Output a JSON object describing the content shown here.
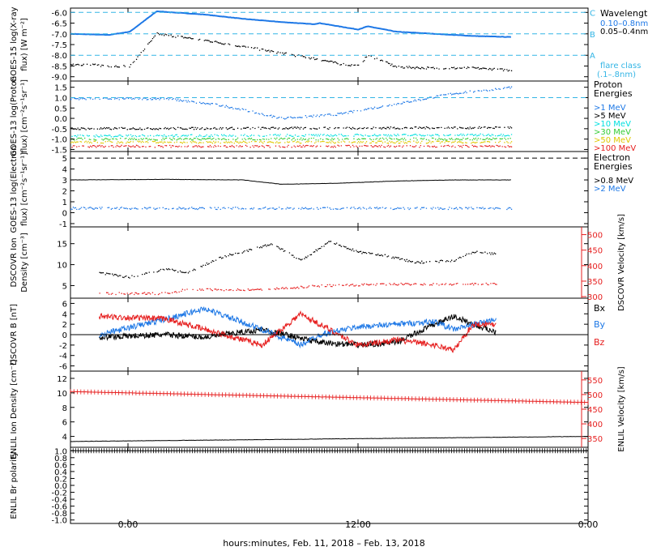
{
  "figure": {
    "x_axis_caption": "hours:minutes, Feb. 11, 2018 – Feb. 13, 2018",
    "x_ticks": [
      "0:00",
      "12:00",
      "0:00"
    ]
  },
  "colors": {
    "black": "#000000",
    "blue": "#1e78e6",
    "cyan": "#00e0e0",
    "green": "#33cc33",
    "yellow": "#e0c800",
    "orange": "#f08c00",
    "red": "#e61e1e",
    "dash": "#33b5e5"
  },
  "chart_data": [
    {
      "type": "line",
      "ylabel": "GOES-15 log(X-ray flux) [W m⁻²]",
      "yticks": [
        "-6.0",
        "-6.5",
        "-7.0",
        "-7.5",
        "-8.0",
        "-8.5",
        "-9.0"
      ],
      "ylim": [
        -9.2,
        -5.8
      ],
      "legend_title": "Wavelength",
      "flare_class_lines": [
        {
          "label": "C",
          "value": -6.0
        },
        {
          "label": "B",
          "value": -7.0
        },
        {
          "label": "A",
          "value": -8.0
        }
      ],
      "flare_class_note": [
        "flare class",
        "(.1–.8nm)"
      ],
      "series": [
        {
          "name": "0.10–0.8nm",
          "color": "blue",
          "x": [
            -3,
            -1,
            0.1,
            1.5,
            4,
            6,
            8,
            9.7,
            10,
            11,
            12,
            12.5,
            14,
            16,
            18,
            20
          ],
          "y": [
            -7.0,
            -7.05,
            -6.9,
            -5.95,
            -6.1,
            -6.3,
            -6.45,
            -6.55,
            -6.5,
            -6.65,
            -6.8,
            -6.65,
            -6.9,
            -7.0,
            -7.1,
            -7.15
          ]
        },
        {
          "name": "0.05–0.4nm",
          "color": "black",
          "x": [
            -3,
            -1,
            0.1,
            1.5,
            4,
            6,
            8,
            10,
            11,
            12,
            12.5,
            14,
            16,
            18,
            20
          ],
          "y": [
            -8.4,
            -8.5,
            -8.5,
            -7.0,
            -7.3,
            -7.6,
            -7.9,
            -8.2,
            -8.4,
            -8.5,
            -8.0,
            -8.55,
            -8.6,
            -8.6,
            -8.7
          ]
        }
      ]
    },
    {
      "type": "scatter",
      "ylabel": "GOES-13 log(Proton flux) [cm⁻²s⁻¹sr⁻¹]",
      "yticks": [
        "1.5",
        "1.0",
        "0.5",
        "0.0",
        "-0.5",
        "-1.0",
        "-1.5"
      ],
      "ylim": [
        -1.6,
        1.8
      ],
      "legend_title": [
        "Proton",
        "Energies"
      ],
      "threshold": 1.0,
      "series": [
        {
          "name": ">1 MeV",
          "color": "blue",
          "x": [
            -3,
            2,
            5,
            8,
            11,
            14,
            17,
            20
          ],
          "y": [
            0.95,
            0.95,
            0.6,
            0.0,
            0.2,
            0.7,
            1.2,
            1.5
          ]
        },
        {
          "name": ">5 MeV",
          "color": "black",
          "x": [
            -3,
            20
          ],
          "y": [
            -0.5,
            -0.45
          ]
        },
        {
          "name": ">10 MeV",
          "color": "cyan",
          "x": [
            -3,
            20
          ],
          "y": [
            -0.85,
            -0.8
          ]
        },
        {
          "name": ">30 MeV",
          "color": "green",
          "x": [
            -3,
            20
          ],
          "y": [
            -1.0,
            -1.0
          ]
        },
        {
          "name": ">50 MeV",
          "color": "yellow",
          "x": [
            -3,
            20
          ],
          "y": [
            -1.15,
            -1.15
          ]
        },
        {
          "name": ">100 MeV",
          "color": "red",
          "x": [
            -3,
            20
          ],
          "y": [
            -1.35,
            -1.35
          ]
        }
      ]
    },
    {
      "type": "line",
      "ylabel": "GOES-13 log(Electron flux) [cm⁻²s⁻¹sr⁻¹]",
      "yticks": [
        "5",
        "4",
        "3",
        "2",
        "1",
        "0",
        "-1"
      ],
      "ylim": [
        -1.3,
        5.6
      ],
      "legend_title": [
        "Electron",
        "Energies"
      ],
      "series": [
        {
          "name": ">0.8 MeV",
          "color": "black",
          "x": [
            -3,
            2,
            6,
            8,
            11,
            14,
            17,
            20
          ],
          "y": [
            3.0,
            3.05,
            3.0,
            2.6,
            2.7,
            2.9,
            3.0,
            3.0
          ]
        },
        {
          "name": ">2 MeV",
          "color": "blue",
          "x": [
            -3,
            20
          ],
          "y": [
            0.4,
            0.4
          ]
        }
      ]
    },
    {
      "type": "scatter",
      "ylabel": "DSCOVR Ion Density [cm⁻³]",
      "ylabel_right": "DSCOVR Velocity [km/s]",
      "yticks": [
        "15",
        "10",
        "5"
      ],
      "yticks_right": [
        "500",
        "450",
        "400",
        "350",
        "300"
      ],
      "ylim": [
        2,
        19
      ],
      "ylim_right": [
        295,
        525
      ],
      "series": [
        {
          "name": "Ion Density",
          "color": "black",
          "x": [
            -1.5,
            0,
            2,
            3,
            5,
            6,
            7.5,
            9,
            10.5,
            12,
            13,
            15,
            17,
            18,
            19.2
          ],
          "y": [
            8,
            7,
            9,
            8,
            12,
            13,
            15,
            11,
            15.5,
            13,
            12.5,
            10.5,
            11,
            13,
            12.5
          ]
        },
        {
          "name": "Velocity",
          "color": "red",
          "axis": "right",
          "x": [
            -1.5,
            2,
            3,
            7,
            10,
            14,
            19.2
          ],
          "y": [
            310,
            310,
            322,
            322,
            335,
            340,
            340
          ]
        }
      ]
    },
    {
      "type": "line",
      "ylabel": "DSCOVR B [nT]",
      "yticks": [
        "6",
        "4",
        "2",
        "0",
        "-2",
        "-4",
        "-6"
      ],
      "ylim": [
        -7,
        7
      ],
      "series": [
        {
          "name": "Bx",
          "color": "black",
          "x": [
            -1.5,
            2,
            4,
            7,
            10,
            12,
            14,
            16,
            17,
            18,
            19.2
          ],
          "y": [
            -0.5,
            0,
            -0.5,
            1,
            -1.5,
            -2,
            -1.5,
            2,
            3.5,
            2,
            0.5
          ]
        },
        {
          "name": "By",
          "color": "blue",
          "x": [
            -1.5,
            2,
            4,
            7,
            9,
            10,
            12,
            14,
            16,
            17,
            19.2
          ],
          "y": [
            0,
            3,
            5,
            1,
            -2,
            0,
            1.5,
            2,
            2.5,
            1,
            3
          ]
        },
        {
          "name": "Bz",
          "color": "red",
          "x": [
            -1.5,
            2,
            4,
            7,
            9,
            10,
            12,
            14,
            16,
            17,
            18,
            19.2
          ],
          "y": [
            3.5,
            3,
            1,
            -2,
            4,
            2,
            -2,
            -1,
            -2,
            -3,
            2,
            2
          ]
        }
      ]
    },
    {
      "type": "line",
      "ylabel": "ENLIL Ion Density [cm⁻³]",
      "ylabel_right": "ENLIL Velocity [km/s]",
      "yticks": [
        "12",
        "10",
        "8",
        "6",
        "4"
      ],
      "yticks_right": [
        "550",
        "500",
        "450",
        "400",
        "350"
      ],
      "ylim": [
        2.5,
        13
      ],
      "ylim_right": [
        320,
        580
      ],
      "series": [
        {
          "name": "Ion Density",
          "color": "black",
          "x": [
            -3,
            24
          ],
          "y": [
            3.3,
            4.0
          ]
        },
        {
          "name": "Velocity",
          "color": "red",
          "axis": "right",
          "x": [
            -3,
            24
          ],
          "y": [
            510,
            473
          ]
        }
      ]
    },
    {
      "type": "line",
      "ylabel": "ENLIL Br polarity",
      "yticks": [
        "1.0",
        "0.8",
        "0.6",
        "0.4",
        "0.2",
        "0.0",
        "-0.2",
        "-0.4",
        "-0.6",
        "-0.8",
        "-1.0"
      ],
      "ylim": [
        -1.1,
        1.1
      ],
      "series": [
        {
          "name": "Br polarity",
          "color": "black",
          "x": [
            -3,
            24
          ],
          "y": [
            1.0,
            1.0
          ]
        }
      ]
    }
  ],
  "legend_labels": {
    "xray": [
      "Wavelength",
      "0.10–0.8nm",
      "0.05–0.4nm"
    ],
    "bx": "Bx",
    "by": "By",
    "bz": "Bz"
  }
}
